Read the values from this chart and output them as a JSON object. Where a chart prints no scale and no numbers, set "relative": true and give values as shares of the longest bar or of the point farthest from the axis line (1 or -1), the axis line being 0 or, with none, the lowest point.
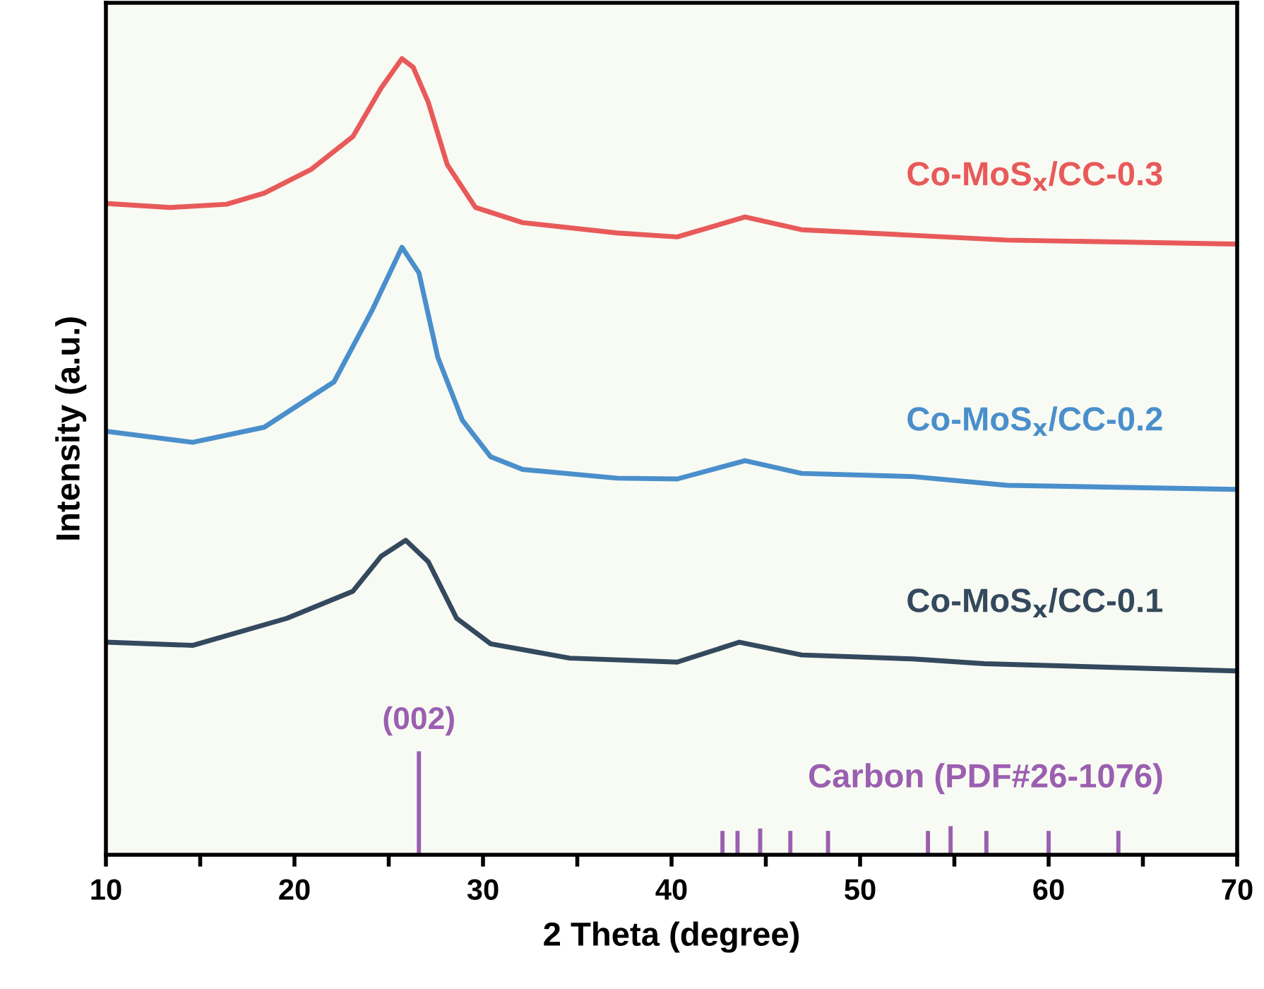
{
  "chart_data": {
    "type": "line",
    "relative": true,
    "xlabel": "2 Theta (degree)",
    "ylabel": "Intensity (a.u.)",
    "xlim": [
      10,
      70
    ],
    "xticks": [
      10,
      {
        "value": 15,
        "label": null
      },
      20,
      {
        "value": 25,
        "label": null
      },
      30,
      {
        "value": 35,
        "label": null
      },
      40,
      {
        "value": 45,
        "label": null
      },
      50,
      {
        "value": 55,
        "label": null
      },
      60,
      {
        "value": 65,
        "label": null
      },
      70
    ],
    "tick_labels": "x",
    "grid": false,
    "legend": false,
    "series": [
      {
        "name": "Co-MoS$_{x}$/CC-0.3",
        "color": "#e85a5a",
        "x": [
          10,
          13.4,
          16.4,
          18.4,
          20.9,
          23.1,
          24.6,
          25.7,
          26.3,
          27.1,
          28.1,
          29.6,
          32.1,
          37.1,
          40.3,
          43.9,
          46.9,
          52.8,
          57.8,
          69.8
        ],
        "values": [
          0.818,
          0.813,
          0.817,
          0.831,
          0.861,
          0.902,
          0.963,
          1,
          0.989,
          0.945,
          0.867,
          0.813,
          0.794,
          0.781,
          0.776,
          0.801,
          0.785,
          0.778,
          0.772,
          0.767
        ]
      },
      {
        "name": "Co-MoS$_{x}$/CC-0.2",
        "color": "#4a8fcc",
        "x": [
          10,
          14.6,
          18.4,
          22.1,
          24.1,
          25.7,
          26.6,
          27.6,
          28.9,
          30.4,
          32.1,
          37.1,
          40.3,
          43.9,
          46.9,
          52.8,
          57.8,
          69.8
        ],
        "values": [
          0.532,
          0.518,
          0.537,
          0.594,
          0.683,
          0.763,
          0.731,
          0.625,
          0.546,
          0.5,
          0.484,
          0.473,
          0.472,
          0.495,
          0.479,
          0.475,
          0.464,
          0.459
        ]
      },
      {
        "name": "Co-MoS$_{x}$/CC-0.1",
        "color": "#34495e",
        "x": [
          10,
          14.6,
          19.6,
          23.1,
          24.6,
          25.9,
          27.1,
          28.6,
          30.4,
          34.6,
          40.3,
          43.6,
          46.9,
          52.8,
          56.6,
          69.8
        ],
        "values": [
          0.267,
          0.263,
          0.297,
          0.331,
          0.375,
          0.395,
          0.368,
          0.297,
          0.265,
          0.247,
          0.242,
          0.267,
          0.251,
          0.246,
          0.24,
          0.231
        ]
      },
      {
        "name": "Carbon (PDF#26-1076)",
        "type": "bar",
        "color": "#9b5fb0",
        "x": [
          26.6,
          42.7,
          43.5,
          44.7,
          46.3,
          48.3,
          53.6,
          54.8,
          56.7,
          60.0,
          63.7
        ],
        "values": [
          0.13,
          0.03,
          0.03,
          0.033,
          0.03,
          0.03,
          0.03,
          0.036,
          0.03,
          0.03,
          0.03
        ]
      }
    ],
    "annotations": [
      {
        "text": "(002)",
        "x": 26.6,
        "y": 0.13
      }
    ]
  }
}
